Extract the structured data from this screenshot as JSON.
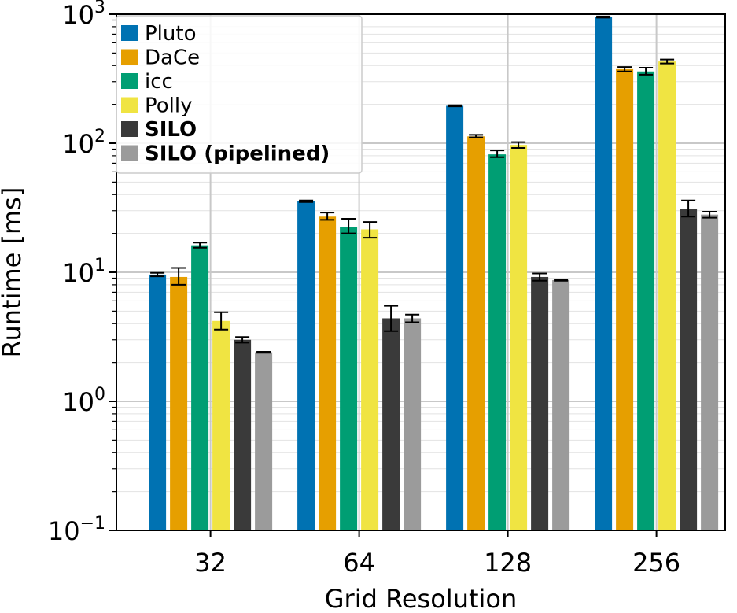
{
  "chart_data": {
    "type": "bar",
    "xlabel": "Grid Resolution",
    "ylabel": "Runtime [ms]",
    "yscale": "log",
    "ylim": [
      0.1,
      1000
    ],
    "ytick_labels": [
      {
        "base": "10",
        "exp": "−1"
      },
      {
        "base": "10",
        "exp": "0"
      },
      {
        "base": "10",
        "exp": "1"
      },
      {
        "base": "10",
        "exp": "2"
      },
      {
        "base": "10",
        "exp": "3"
      }
    ],
    "categories": [
      "32",
      "64",
      "128",
      "256"
    ],
    "grid": true,
    "legend_position": "upper-left",
    "series": [
      {
        "name": "Pluto",
        "color": "#0072B2",
        "bold": false,
        "values": [
          9.6,
          35.5,
          195,
          950
        ],
        "err_low": [
          9.3,
          35.0,
          193,
          940
        ],
        "err_high": [
          9.9,
          36.0,
          197,
          960
        ]
      },
      {
        "name": "DaCe",
        "color": "#E69F00",
        "bold": false,
        "values": [
          9.2,
          27,
          113,
          375
        ],
        "err_low": [
          8.0,
          25.5,
          111,
          360
        ],
        "err_high": [
          10.8,
          29,
          116,
          390
        ]
      },
      {
        "name": "icc",
        "color": "#009E73",
        "bold": false,
        "values": [
          16.2,
          22.5,
          82,
          360
        ],
        "err_low": [
          15.5,
          20,
          78,
          340
        ],
        "err_high": [
          17,
          26,
          88,
          385
        ]
      },
      {
        "name": "Polly",
        "color": "#F0E442",
        "bold": false,
        "values": [
          4.2,
          21.5,
          97,
          430
        ],
        "err_low": [
          3.6,
          18.5,
          92,
          415
        ],
        "err_high": [
          4.9,
          24.5,
          102,
          445
        ]
      },
      {
        "name": "SILO",
        "color": "#3A3A3A",
        "bold": true,
        "values": [
          3.0,
          4.4,
          9.2,
          31
        ],
        "err_low": [
          2.85,
          3.5,
          8.6,
          27
        ],
        "err_high": [
          3.15,
          5.5,
          9.8,
          36
        ]
      },
      {
        "name": "SILO (pipelined)",
        "color": "#9B9B9B",
        "bold": true,
        "values": [
          2.4,
          4.4,
          8.7,
          28
        ],
        "err_low": [
          2.38,
          4.1,
          8.6,
          26.5
        ],
        "err_high": [
          2.42,
          4.7,
          8.8,
          29.5
        ]
      }
    ]
  }
}
